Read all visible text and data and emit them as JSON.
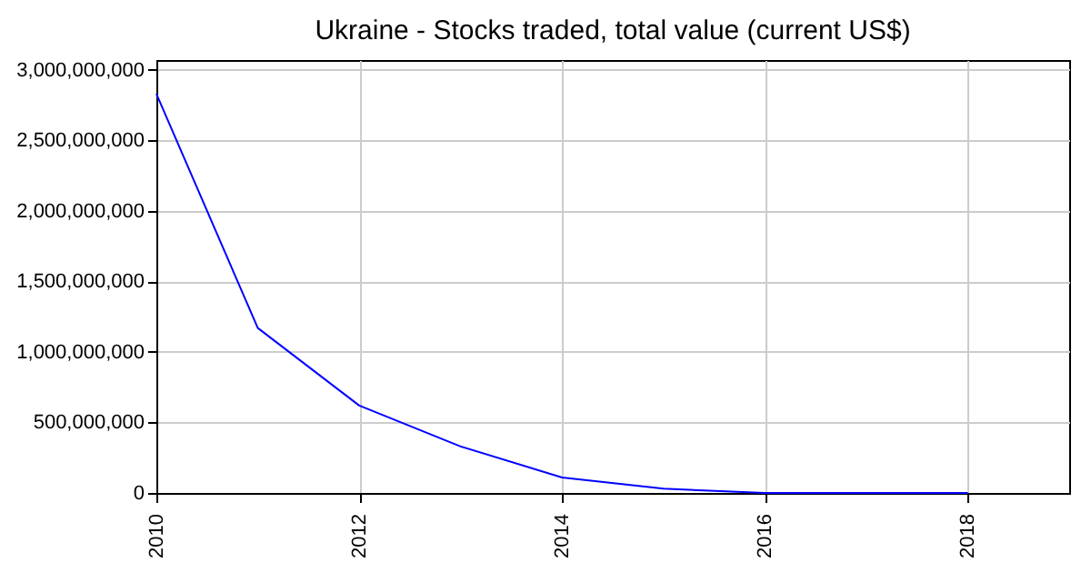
{
  "chart_data": {
    "type": "line",
    "title": "Ukraine - Stocks traded, total value (current US$)",
    "x": [
      2010,
      2011,
      2012,
      2013,
      2014,
      2015,
      2016,
      2017,
      2018
    ],
    "series": [
      {
        "color": "#0000ff",
        "values": [
          2830000000,
          1170000000,
          620000000,
          330000000,
          110000000,
          30000000,
          0,
          0,
          0
        ]
      }
    ],
    "xlim": [
      2010,
      2019
    ],
    "xticks": [
      2010,
      2012,
      2014,
      2016,
      2018
    ],
    "ylim": [
      0,
      3070000000
    ],
    "yticks": [
      0,
      {
        "value": 500000000,
        "label": "500,000,000"
      },
      {
        "value": 1000000000,
        "label": "1,000,000,000"
      },
      {
        "value": 1500000000,
        "label": "1,500,000,000"
      },
      {
        "value": 2000000000,
        "label": "2,000,000,000"
      },
      {
        "value": 2500000000,
        "label": "2,500,000,000"
      },
      {
        "value": 3000000000,
        "label": "3,000,000,000"
      }
    ],
    "grid": true,
    "marker": "none",
    "line_style": "solid"
  }
}
